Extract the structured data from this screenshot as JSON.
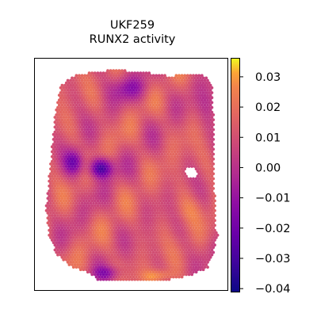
{
  "chart_data": {
    "type": "heatmap",
    "subtype": "spatial-spot-map",
    "title": "UKF259",
    "subtitle": "RUNX2 activity",
    "xlabel": "",
    "ylabel": "",
    "colormap": "plasma",
    "colorbar": {
      "vmin": -0.041,
      "vmax": 0.036,
      "ticks": [
        0.03,
        0.02,
        0.01,
        0.0,
        -0.01,
        -0.02,
        -0.03,
        -0.04
      ],
      "tick_labels": [
        "0.03",
        "0.02",
        "0.01",
        "0.00",
        "−0.01",
        "−0.02",
        "−0.03",
        "−0.04"
      ],
      "placement": "right"
    },
    "axes_ticks_visible": false,
    "grid": false
  }
}
